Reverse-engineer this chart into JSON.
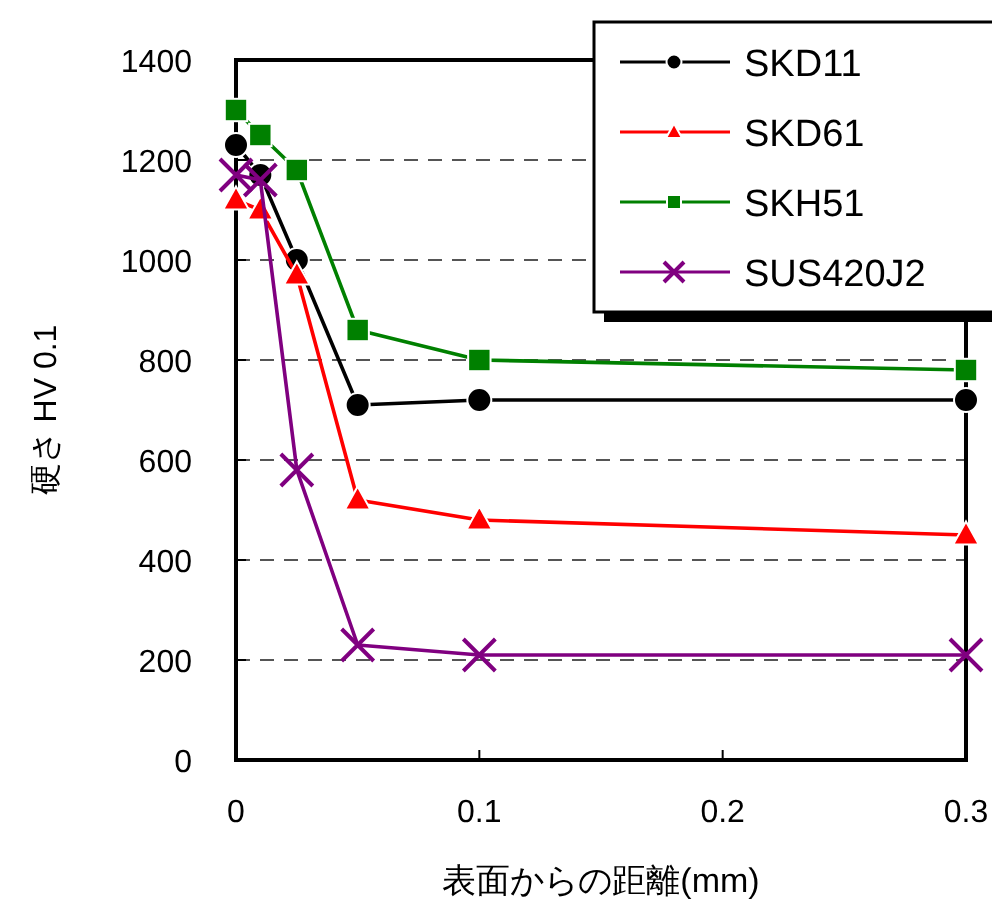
{
  "chart_data": {
    "type": "line",
    "xlabel": "表面からの距離(mm)",
    "ylabel": "硬さ HV 0.1",
    "xlim": [
      0,
      0.3
    ],
    "xticks": [
      0,
      0.1,
      0.2,
      0.3
    ],
    "ylim": [
      0,
      1400
    ],
    "yticks": [
      0,
      200,
      400,
      600,
      800,
      1000,
      1200,
      1400
    ],
    "grid": "y",
    "legend": "top right",
    "series": [
      {
        "name": "SKD11",
        "color": "#000000",
        "marker": "circle",
        "x": [
          0,
          0.01,
          0.025,
          0.05,
          0.1,
          0.3
        ],
        "values": [
          1230,
          1170,
          1000,
          710,
          720,
          720
        ]
      },
      {
        "name": "SKD61",
        "color": "#ff0000",
        "marker": "triangle",
        "x": [
          0,
          0.01,
          0.025,
          0.05,
          0.1,
          0.3
        ],
        "values": [
          1120,
          1100,
          970,
          520,
          480,
          450
        ]
      },
      {
        "name": "SKH51",
        "color": "#008000",
        "marker": "square",
        "x": [
          0,
          0.01,
          0.025,
          0.05,
          0.1,
          0.3
        ],
        "values": [
          1300,
          1250,
          1180,
          860,
          800,
          780
        ]
      },
      {
        "name": "SUS420J2",
        "color": "#800080",
        "marker": "cross",
        "x": [
          0,
          0.01,
          0.025,
          0.05,
          0.1,
          0.3
        ],
        "values": [
          1170,
          1160,
          580,
          230,
          210,
          210
        ]
      }
    ]
  }
}
